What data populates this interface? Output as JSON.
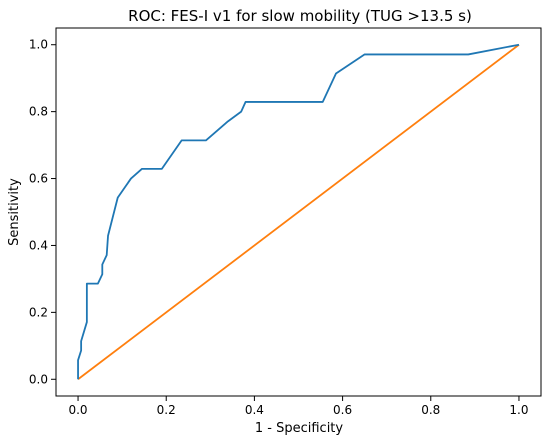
{
  "chart_data": {
    "type": "line",
    "title": "ROC: FES-I v1 for slow mobility (TUG >13.5 s)",
    "xlabel": "1 - Specificity",
    "ylabel": "Sensitivity",
    "xlim": [
      -0.05,
      1.05
    ],
    "ylim": [
      -0.05,
      1.05
    ],
    "xticks": [
      "0.0",
      "0.2",
      "0.4",
      "0.6",
      "0.8",
      "1.0"
    ],
    "yticks": [
      "0.0",
      "0.2",
      "0.4",
      "0.6",
      "0.8",
      "1.0"
    ],
    "grid": false,
    "legend": false,
    "series": [
      {
        "color": "#1f77b4",
        "points": [
          [
            0.0,
            0.0
          ],
          [
            0.0,
            0.057
          ],
          [
            0.007,
            0.086
          ],
          [
            0.007,
            0.114
          ],
          [
            0.02,
            0.171
          ],
          [
            0.02,
            0.286
          ],
          [
            0.045,
            0.286
          ],
          [
            0.055,
            0.314
          ],
          [
            0.055,
            0.343
          ],
          [
            0.065,
            0.371
          ],
          [
            0.068,
            0.429
          ],
          [
            0.09,
            0.543
          ],
          [
            0.12,
            0.6
          ],
          [
            0.145,
            0.629
          ],
          [
            0.19,
            0.629
          ],
          [
            0.235,
            0.714
          ],
          [
            0.29,
            0.714
          ],
          [
            0.34,
            0.771
          ],
          [
            0.37,
            0.8
          ],
          [
            0.38,
            0.829
          ],
          [
            0.555,
            0.829
          ],
          [
            0.585,
            0.914
          ],
          [
            0.65,
            0.971
          ],
          [
            0.885,
            0.971
          ],
          [
            1.0,
            1.0
          ]
        ]
      },
      {
        "color": "#ff7f0e",
        "points": [
          [
            0.0,
            0.0
          ],
          [
            1.0,
            1.0
          ]
        ]
      }
    ]
  }
}
